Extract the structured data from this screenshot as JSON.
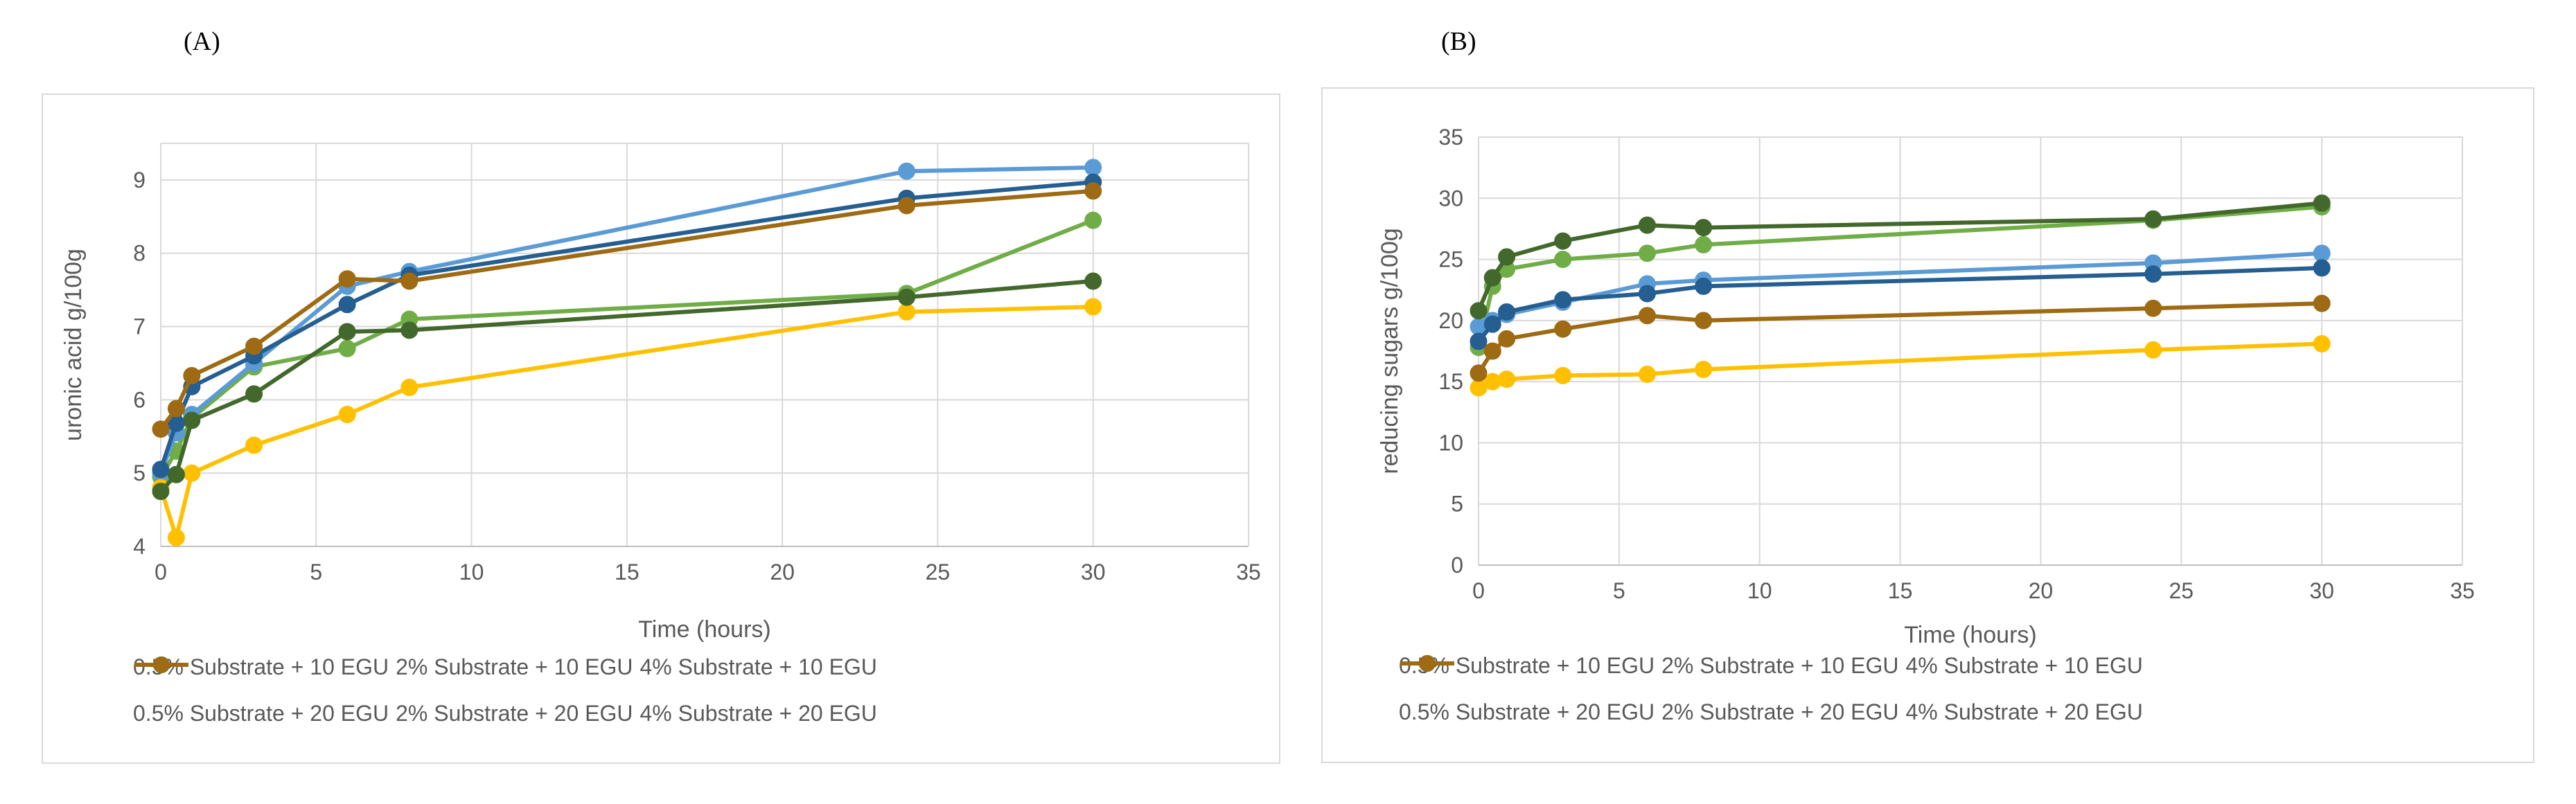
{
  "panels": {
    "a_label": "(A)",
    "b_label": "(B)"
  },
  "series_style": [
    {
      "name": "0.5% Substrate + 10 EGU",
      "color": "#70ad47"
    },
    {
      "name": "2% Substrate + 10 EGU",
      "color": "#5b9bd5"
    },
    {
      "name": "4% Substrate + 10 EGU",
      "color": "#ffc000"
    },
    {
      "name": "0.5% Substrate + 20 EGU",
      "color": "#43682b"
    },
    {
      "name": "2% Substrate + 20 EGU",
      "color": "#255e91"
    },
    {
      "name": "4% Substrate + 20 EGU",
      "color": "#9e6b14"
    }
  ],
  "chart_data": [
    {
      "type": "line",
      "title": "",
      "xlabel": "Time (hours)",
      "ylabel": "uronic acid g/100g",
      "xlim": [
        0,
        35
      ],
      "ylim": [
        4,
        9.5
      ],
      "xticks": [
        0,
        5,
        10,
        15,
        20,
        25,
        30,
        35
      ],
      "yticks": [
        4,
        5,
        6,
        7,
        8,
        9
      ],
      "grid": true,
      "legend": "bottom",
      "x": [
        0,
        0.5,
        1,
        3,
        6,
        8,
        24,
        30
      ],
      "series": [
        {
          "name": "0.5% Substrate + 10 EGU",
          "values": [
            4.95,
            5.3,
            5.75,
            6.45,
            6.7,
            7.1,
            7.45,
            8.45
          ]
        },
        {
          "name": "2% Substrate + 10 EGU",
          "values": [
            5.0,
            5.55,
            5.8,
            6.5,
            7.55,
            7.75,
            9.12,
            9.17
          ]
        },
        {
          "name": "4% Substrate + 10 EGU",
          "values": [
            4.8,
            4.12,
            5.0,
            5.38,
            5.8,
            6.17,
            7.2,
            7.27
          ]
        },
        {
          "name": "0.5% Substrate + 20 EGU",
          "values": [
            4.75,
            4.98,
            5.72,
            6.08,
            6.93,
            6.95,
            7.4,
            7.62
          ]
        },
        {
          "name": "2% Substrate + 20 EGU",
          "values": [
            5.05,
            5.68,
            6.18,
            6.6,
            7.3,
            7.7,
            8.75,
            8.97
          ]
        },
        {
          "name": "4% Substrate + 20 EGU",
          "values": [
            5.6,
            5.88,
            6.33,
            6.73,
            7.65,
            7.62,
            8.65,
            8.85
          ]
        }
      ]
    },
    {
      "type": "line",
      "title": "",
      "xlabel": "Time (hours)",
      "ylabel": "reducing sugars g/100g",
      "xlim": [
        0,
        35
      ],
      "ylim": [
        0,
        35
      ],
      "xticks": [
        0,
        5,
        10,
        15,
        20,
        25,
        30,
        35
      ],
      "yticks": [
        0,
        5,
        10,
        15,
        20,
        25,
        30,
        35
      ],
      "grid": true,
      "legend": "bottom",
      "x": [
        0,
        0.5,
        1,
        3,
        6,
        8,
        24,
        30
      ],
      "series": [
        {
          "name": "0.5% Substrate + 10 EGU",
          "values": [
            17.8,
            22.8,
            24.2,
            25.0,
            25.5,
            26.2,
            28.2,
            29.3
          ]
        },
        {
          "name": "2% Substrate + 10 EGU",
          "values": [
            19.5,
            20.0,
            20.5,
            21.5,
            23.0,
            23.3,
            24.7,
            25.5
          ]
        },
        {
          "name": "4% Substrate + 10 EGU",
          "values": [
            14.5,
            15.0,
            15.2,
            15.5,
            15.6,
            16.0,
            17.6,
            18.1
          ]
        },
        {
          "name": "0.5% Substrate + 20 EGU",
          "values": [
            20.8,
            23.5,
            25.2,
            26.5,
            27.8,
            27.6,
            28.3,
            29.6
          ]
        },
        {
          "name": "2% Substrate + 20 EGU",
          "values": [
            18.3,
            19.7,
            20.7,
            21.7,
            22.2,
            22.8,
            23.8,
            24.3
          ]
        },
        {
          "name": "4% Substrate + 20 EGU",
          "values": [
            15.7,
            17.5,
            18.5,
            19.3,
            20.4,
            20.0,
            21.0,
            21.4
          ]
        }
      ]
    }
  ]
}
